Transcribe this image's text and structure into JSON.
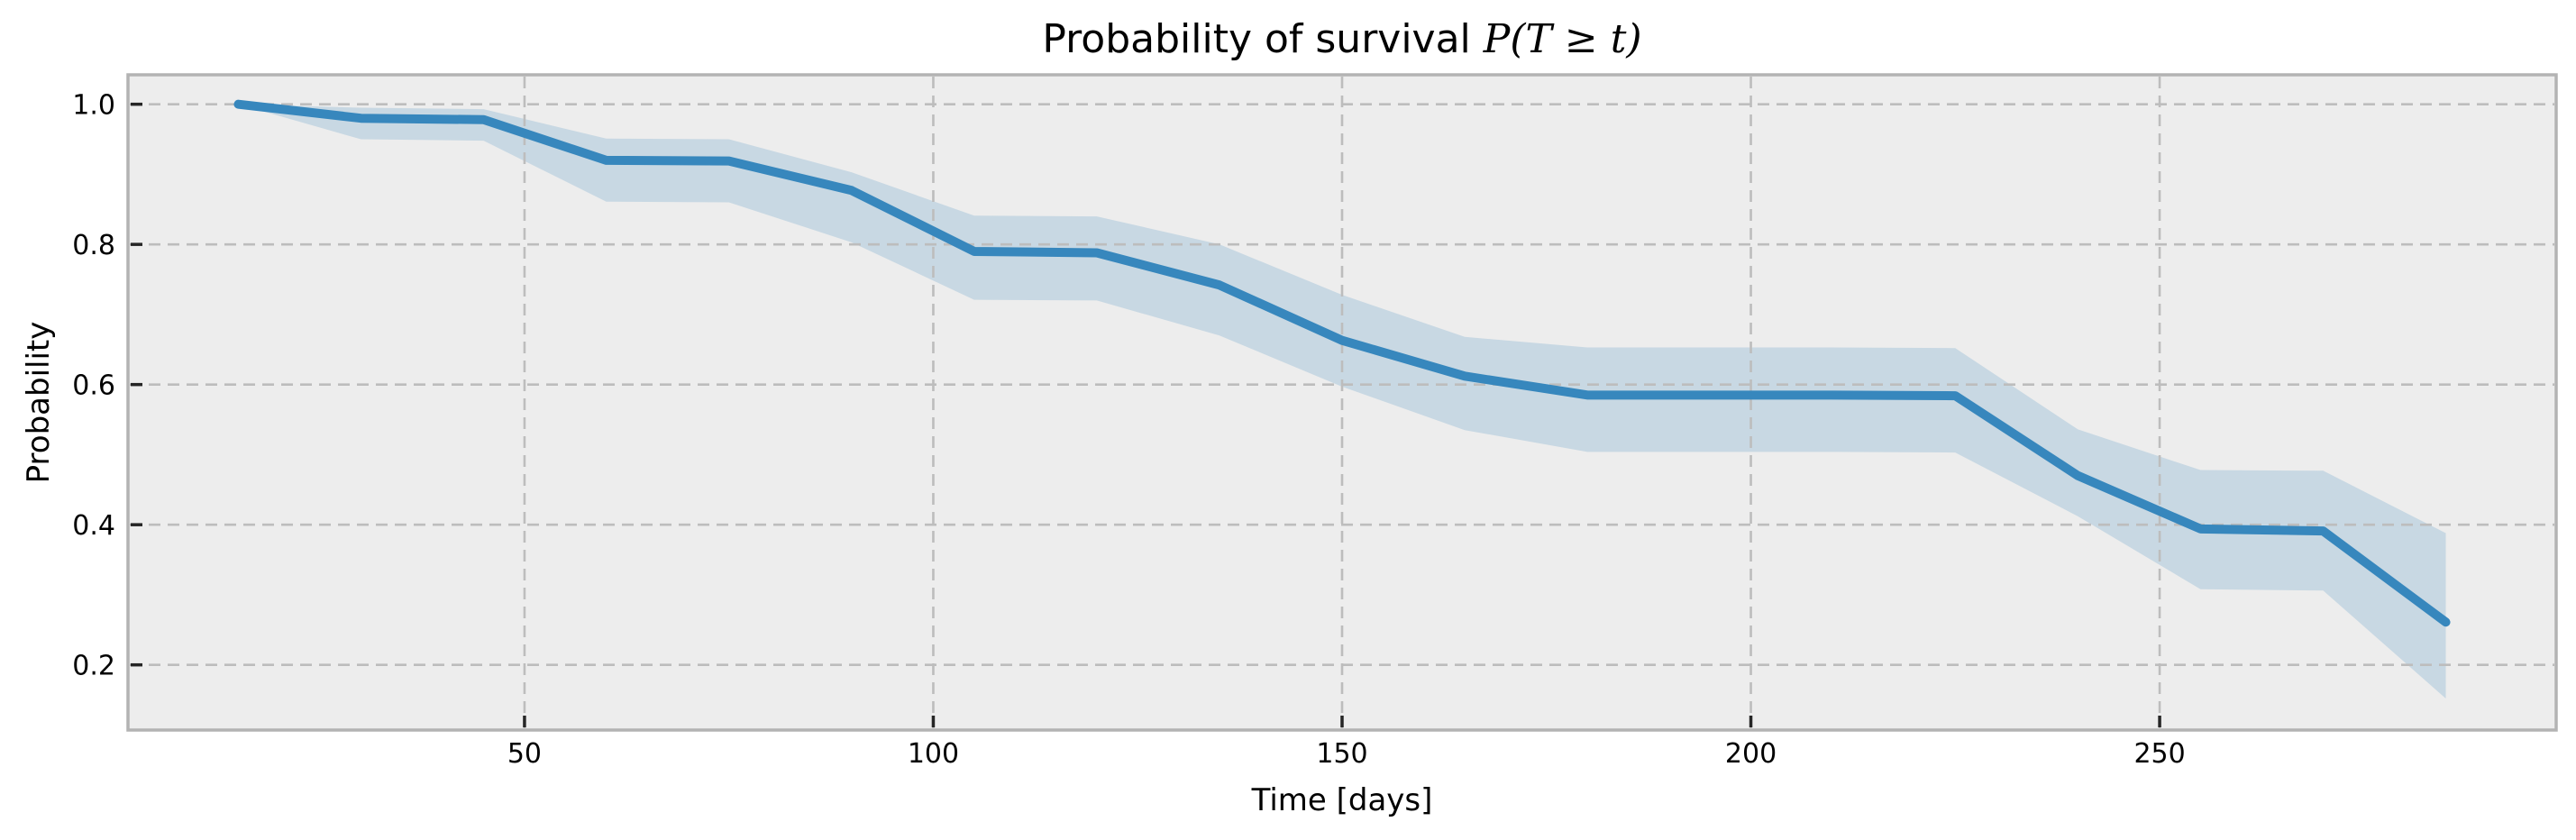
{
  "figure": {
    "title_text": "Probability of survival ",
    "title_math": "P(T ≥ t)"
  },
  "chart_data": {
    "type": "line",
    "title": "Probability of survival P(T ≥ t)",
    "xlabel": "Time [days]",
    "ylabel": "Probability",
    "legend": "none",
    "grid": "dashed",
    "xlim": [
      1.5,
      298.5
    ],
    "ylim": [
      0.107,
      1.042
    ],
    "x_ticks": [
      50,
      100,
      150,
      200,
      250
    ],
    "x_tick_labels": [
      "50",
      "100",
      "150",
      "200",
      "250"
    ],
    "y_ticks": [
      0.2,
      0.4,
      0.6,
      0.8,
      1.0
    ],
    "y_tick_labels": [
      "0.2",
      "0.4",
      "0.6",
      "0.8",
      "1.0"
    ],
    "x": [
      15,
      30,
      45,
      60,
      75,
      90,
      105,
      120,
      135,
      150,
      165,
      180,
      195,
      210,
      225,
      240,
      255,
      270,
      285
    ],
    "series": [
      {
        "name": "survival_probability",
        "values": [
          1.0,
          0.98,
          0.978,
          0.92,
          0.919,
          0.877,
          0.79,
          0.788,
          0.742,
          0.663,
          0.612,
          0.585,
          0.585,
          0.585,
          0.584,
          0.47,
          0.394,
          0.391,
          0.261
        ]
      },
      {
        "name": "ci_upper",
        "values": [
          1.0,
          0.995,
          0.993,
          0.951,
          0.95,
          0.903,
          0.841,
          0.84,
          0.8,
          0.728,
          0.668,
          0.653,
          0.653,
          0.653,
          0.652,
          0.536,
          0.478,
          0.477,
          0.388
        ]
      },
      {
        "name": "ci_lower",
        "values": [
          1.0,
          0.95,
          0.948,
          0.861,
          0.86,
          0.803,
          0.721,
          0.72,
          0.67,
          0.597,
          0.535,
          0.504,
          0.504,
          0.504,
          0.503,
          0.412,
          0.308,
          0.306,
          0.152
        ]
      }
    ],
    "colors": {
      "line": "#3787bd",
      "band": "#3787bd",
      "band_opacity": 0.2,
      "plot_background": "#ededed",
      "figure_background": "#ffffff",
      "grid": "#bdbdbd",
      "frame": "#b3b3b3",
      "tick": "#262626",
      "text": "#000000"
    }
  }
}
